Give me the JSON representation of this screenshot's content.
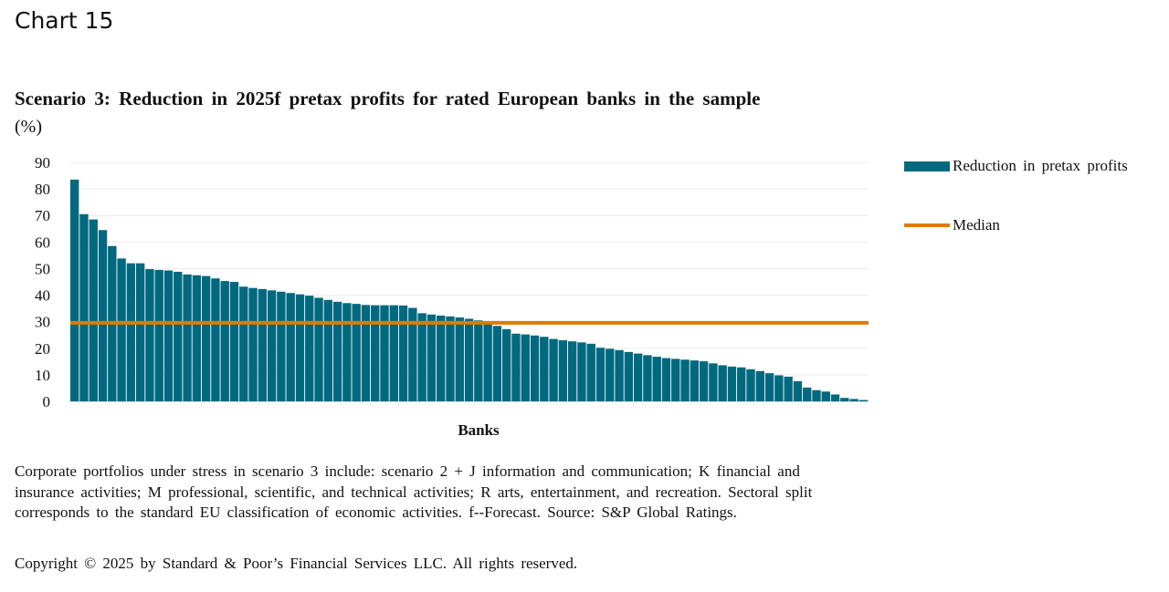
{
  "page": {
    "label": "Chart 15"
  },
  "chart_data": {
    "type": "bar",
    "title": "Scenario  3: Reduction  in 2025f  pretax  profits  for rated  European  banks  in the  sample",
    "subtitle": "(%)",
    "xlabel": "Banks",
    "ylabel": "",
    "ylim": [
      0,
      90
    ],
    "yticks": [
      "0",
      "10",
      "20",
      "30",
      "40",
      "50",
      "60",
      "70",
      "80",
      "90"
    ],
    "grid": true,
    "legend_position": "right",
    "series": [
      {
        "name": "Reduction   in pretax   profits",
        "color": "#00697f",
        "values": [
          83.5,
          70.5,
          68.5,
          64.5,
          58.5,
          53.8,
          52,
          52,
          49.8,
          49.5,
          49.3,
          48.8,
          47.8,
          47.5,
          47.2,
          46.3,
          45.3,
          45,
          43.2,
          42.7,
          42.3,
          41.8,
          41.3,
          40.8,
          40.3,
          39.8,
          39,
          38.2,
          37.5,
          37,
          36.7,
          36.3,
          36.2,
          36.2,
          36.2,
          36.1,
          35.2,
          33.2,
          32.7,
          32.3,
          32,
          31.6,
          31.1,
          30.5,
          29.2,
          28.4,
          27.2,
          25.5,
          25.2,
          24.8,
          24.3,
          23.5,
          23,
          22.6,
          22.2,
          21.7,
          20.2,
          19.8,
          19.3,
          18.6,
          18,
          17.4,
          16.8,
          16.3,
          16,
          15.7,
          15.4,
          15.1,
          14.3,
          13.6,
          13.1,
          12.8,
          12.1,
          11.4,
          10.6,
          9.8,
          9.3,
          7.6,
          5.2,
          4.2,
          3.7,
          2.6,
          1.3,
          0.9,
          0.5
        ]
      },
      {
        "name": "Median",
        "type": "line",
        "color": "#e07b00",
        "value": 29.6
      }
    ]
  },
  "footnote": "Corporate  portfolios  under stress  in scenario  3 include:  scenario  2 + J information  and communication;  K financial  and  insurance  activities;  M professional,  scientific,  and  technical  activities;  R arts, entertainment,  and recreation.  Sectoral  split  corresponds  to the standard  EU classification  of economic activities.  f--Forecast.  Source:  S&P Global  Ratings.",
  "copyright": "Copyright  © 2025  by Standard  & Poor’s  Financial  Services  LLC. All rights  reserved."
}
